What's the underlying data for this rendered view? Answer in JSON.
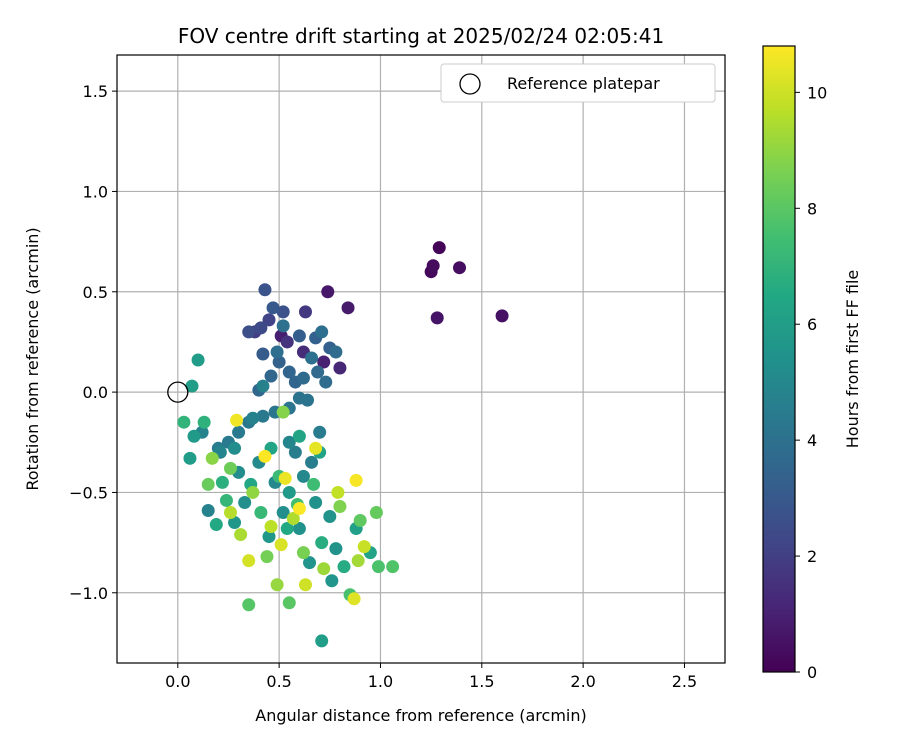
{
  "chart_data": {
    "type": "scatter",
    "title": "FOV centre drift starting at 2025/02/24 02:05:41",
    "xlabel": "Angular distance from reference (arcmin)",
    "ylabel": "Rotation from reference (arcmin)",
    "xlim": [
      -0.3,
      2.7
    ],
    "ylim": [
      -1.35,
      1.68
    ],
    "xticks": [
      0.0,
      0.5,
      1.0,
      1.5,
      2.0,
      2.5
    ],
    "xtick_labels": [
      "0.0",
      "0.5",
      "1.0",
      "1.5",
      "2.0",
      "2.5"
    ],
    "yticks": [
      -1.0,
      -0.5,
      0.0,
      0.5,
      1.0,
      1.5
    ],
    "ytick_labels": [
      "−1.0",
      "−0.5",
      "0.0",
      "0.5",
      "1.0",
      "1.5"
    ],
    "grid": true,
    "legend": {
      "position": "top-right",
      "entries": [
        "Reference platepar"
      ]
    },
    "reference": {
      "x": 0.0,
      "y": 0.0,
      "label": "Reference platepar"
    },
    "colorbar": {
      "label": "Hours from first FF file",
      "min": 0,
      "max": 10.8,
      "ticks": [
        0,
        2,
        4,
        6,
        8,
        10
      ],
      "colormap": "viridis"
    },
    "points": [
      {
        "x": 1.29,
        "y": 0.72,
        "h": 0.1
      },
      {
        "x": 1.25,
        "y": 0.6,
        "h": 0.2
      },
      {
        "x": 1.26,
        "y": 0.63,
        "h": 0.3
      },
      {
        "x": 1.39,
        "y": 0.62,
        "h": 0.4
      },
      {
        "x": 1.6,
        "y": 0.38,
        "h": 0.5
      },
      {
        "x": 1.28,
        "y": 0.37,
        "h": 0.6
      },
      {
        "x": 0.74,
        "y": 0.5,
        "h": 0.7
      },
      {
        "x": 0.84,
        "y": 0.42,
        "h": 0.8
      },
      {
        "x": 0.51,
        "y": 0.28,
        "h": 0.9
      },
      {
        "x": 0.72,
        "y": 0.15,
        "h": 1.0
      },
      {
        "x": 0.8,
        "y": 0.12,
        "h": 1.2
      },
      {
        "x": 0.62,
        "y": 0.2,
        "h": 1.4
      },
      {
        "x": 0.54,
        "y": 0.25,
        "h": 1.6
      },
      {
        "x": 0.63,
        "y": 0.4,
        "h": 1.8
      },
      {
        "x": 0.38,
        "y": 0.3,
        "h": 2.0
      },
      {
        "x": 0.45,
        "y": 0.36,
        "h": 2.2
      },
      {
        "x": 0.41,
        "y": 0.32,
        "h": 2.4
      },
      {
        "x": 0.35,
        "y": 0.3,
        "h": 2.6
      },
      {
        "x": 0.52,
        "y": 0.4,
        "h": 2.7
      },
      {
        "x": 0.43,
        "y": 0.51,
        "h": 2.8
      },
      {
        "x": 0.47,
        "y": 0.42,
        "h": 3.0
      },
      {
        "x": 0.42,
        "y": 0.19,
        "h": 3.1
      },
      {
        "x": 0.6,
        "y": 0.28,
        "h": 3.2
      },
      {
        "x": 0.75,
        "y": 0.22,
        "h": 3.3
      },
      {
        "x": 0.68,
        "y": 0.27,
        "h": 3.3
      },
      {
        "x": 0.5,
        "y": 0.15,
        "h": 3.4
      },
      {
        "x": 0.55,
        "y": 0.1,
        "h": 3.5
      },
      {
        "x": 0.58,
        "y": 0.05,
        "h": 3.5
      },
      {
        "x": 0.46,
        "y": 0.08,
        "h": 3.6
      },
      {
        "x": 0.4,
        "y": 0.01,
        "h": 3.6
      },
      {
        "x": 0.62,
        "y": 0.07,
        "h": 3.7
      },
      {
        "x": 0.69,
        "y": 0.1,
        "h": 3.7
      },
      {
        "x": 0.73,
        "y": 0.05,
        "h": 3.8
      },
      {
        "x": 0.78,
        "y": 0.2,
        "h": 3.8
      },
      {
        "x": 0.71,
        "y": 0.3,
        "h": 3.9
      },
      {
        "x": 0.49,
        "y": 0.2,
        "h": 3.9
      },
      {
        "x": 0.52,
        "y": 0.33,
        "h": 4.0
      },
      {
        "x": 0.66,
        "y": 0.17,
        "h": 4.0
      },
      {
        "x": 0.6,
        "y": -0.03,
        "h": 4.1
      },
      {
        "x": 0.64,
        "y": -0.04,
        "h": 4.1
      },
      {
        "x": 0.55,
        "y": -0.08,
        "h": 4.2
      },
      {
        "x": 0.48,
        "y": -0.1,
        "h": 4.2
      },
      {
        "x": 0.42,
        "y": -0.12,
        "h": 4.3
      },
      {
        "x": 0.35,
        "y": -0.15,
        "h": 4.3
      },
      {
        "x": 0.3,
        "y": -0.2,
        "h": 4.4
      },
      {
        "x": 0.25,
        "y": -0.25,
        "h": 4.4
      },
      {
        "x": 0.2,
        "y": -0.28,
        "h": 4.5
      },
      {
        "x": 0.7,
        "y": -0.2,
        "h": 4.5
      },
      {
        "x": 0.58,
        "y": -0.3,
        "h": 4.6
      },
      {
        "x": 0.66,
        "y": -0.35,
        "h": 4.6
      },
      {
        "x": 0.42,
        "y": 0.03,
        "h": 4.7
      },
      {
        "x": 0.37,
        "y": -0.13,
        "h": 4.7
      },
      {
        "x": 0.12,
        "y": -0.2,
        "h": 4.8
      },
      {
        "x": 0.15,
        "y": -0.59,
        "h": 4.8
      },
      {
        "x": 0.21,
        "y": -0.3,
        "h": 4.9
      },
      {
        "x": 0.55,
        "y": -0.25,
        "h": 4.9
      },
      {
        "x": 0.62,
        "y": -0.42,
        "h": 5.0
      },
      {
        "x": 0.48,
        "y": -0.45,
        "h": 5.0
      },
      {
        "x": 0.4,
        "y": -0.35,
        "h": 5.1
      },
      {
        "x": 0.3,
        "y": -0.4,
        "h": 5.2
      },
      {
        "x": 0.28,
        "y": -0.28,
        "h": 5.2
      },
      {
        "x": 0.33,
        "y": -0.55,
        "h": 5.3
      },
      {
        "x": 0.52,
        "y": -0.6,
        "h": 5.3
      },
      {
        "x": 0.68,
        "y": -0.55,
        "h": 5.4
      },
      {
        "x": 0.6,
        "y": -0.68,
        "h": 5.4
      },
      {
        "x": 0.75,
        "y": -0.62,
        "h": 5.5
      },
      {
        "x": 0.78,
        "y": -0.78,
        "h": 5.5
      },
      {
        "x": 0.65,
        "y": -0.85,
        "h": 5.6
      },
      {
        "x": 0.76,
        "y": -0.94,
        "h": 5.6
      },
      {
        "x": 0.45,
        "y": -0.72,
        "h": 5.7
      },
      {
        "x": 0.28,
        "y": -0.65,
        "h": 5.7
      },
      {
        "x": 0.55,
        "y": -0.5,
        "h": 5.8
      },
      {
        "x": 0.08,
        "y": -0.22,
        "h": 5.8
      },
      {
        "x": 0.06,
        "y": -0.33,
        "h": 5.9
      },
      {
        "x": 0.1,
        "y": 0.16,
        "h": 5.9
      },
      {
        "x": 0.07,
        "y": 0.03,
        "h": 6.0
      },
      {
        "x": 0.71,
        "y": -1.24,
        "h": 6.0
      },
      {
        "x": 0.88,
        "y": -0.68,
        "h": 6.1
      },
      {
        "x": 0.95,
        "y": -0.8,
        "h": 6.2
      },
      {
        "x": 0.7,
        "y": -0.3,
        "h": 6.2
      },
      {
        "x": 0.6,
        "y": -0.22,
        "h": 6.3
      },
      {
        "x": 0.46,
        "y": -0.28,
        "h": 6.3
      },
      {
        "x": 0.36,
        "y": -0.46,
        "h": 6.4
      },
      {
        "x": 0.19,
        "y": -0.66,
        "h": 6.5
      },
      {
        "x": 0.54,
        "y": -0.68,
        "h": 6.5
      },
      {
        "x": 0.82,
        "y": -0.87,
        "h": 6.6
      },
      {
        "x": 0.71,
        "y": -0.75,
        "h": 6.7
      },
      {
        "x": 0.22,
        "y": -0.45,
        "h": 6.8
      },
      {
        "x": 0.13,
        "y": -0.15,
        "h": 6.9
      },
      {
        "x": 0.03,
        "y": -0.15,
        "h": 7.0
      },
      {
        "x": 0.24,
        "y": -0.54,
        "h": 7.1
      },
      {
        "x": 0.41,
        "y": -0.6,
        "h": 7.2
      },
      {
        "x": 0.5,
        "y": -0.42,
        "h": 7.3
      },
      {
        "x": 0.67,
        "y": -0.46,
        "h": 7.4
      },
      {
        "x": 0.59,
        "y": -0.56,
        "h": 7.5
      },
      {
        "x": 0.85,
        "y": -1.01,
        "h": 7.6
      },
      {
        "x": 0.99,
        "y": -0.87,
        "h": 7.7
      },
      {
        "x": 1.06,
        "y": -0.87,
        "h": 7.8
      },
      {
        "x": 0.35,
        "y": -1.06,
        "h": 7.9
      },
      {
        "x": 0.55,
        "y": -1.05,
        "h": 8.0
      },
      {
        "x": 0.9,
        "y": -0.64,
        "h": 8.1
      },
      {
        "x": 0.98,
        "y": -0.6,
        "h": 8.2
      },
      {
        "x": 0.15,
        "y": -0.46,
        "h": 8.3
      },
      {
        "x": 0.26,
        "y": -0.38,
        "h": 8.4
      },
      {
        "x": 0.44,
        "y": -0.82,
        "h": 8.5
      },
      {
        "x": 0.62,
        "y": -0.8,
        "h": 8.6
      },
      {
        "x": 0.8,
        "y": -0.57,
        "h": 8.7
      },
      {
        "x": 0.52,
        "y": -0.1,
        "h": 8.8
      },
      {
        "x": 0.17,
        "y": -0.33,
        "h": 8.9
      },
      {
        "x": 0.37,
        "y": -0.5,
        "h": 9.0
      },
      {
        "x": 0.49,
        "y": -0.96,
        "h": 9.1
      },
      {
        "x": 0.72,
        "y": -0.88,
        "h": 9.2
      },
      {
        "x": 0.89,
        "y": -0.84,
        "h": 9.3
      },
      {
        "x": 0.31,
        "y": -0.71,
        "h": 9.4
      },
      {
        "x": 0.57,
        "y": -0.63,
        "h": 9.5
      },
      {
        "x": 0.26,
        "y": -0.6,
        "h": 9.6
      },
      {
        "x": 0.46,
        "y": -0.67,
        "h": 9.7
      },
      {
        "x": 0.79,
        "y": -0.5,
        "h": 9.8
      },
      {
        "x": 0.92,
        "y": -0.77,
        "h": 9.9
      },
      {
        "x": 0.63,
        "y": -0.96,
        "h": 10.0
      },
      {
        "x": 0.35,
        "y": -0.84,
        "h": 10.1
      },
      {
        "x": 0.51,
        "y": -0.76,
        "h": 10.2
      },
      {
        "x": 0.87,
        "y": -1.03,
        "h": 10.3
      },
      {
        "x": 0.68,
        "y": -0.28,
        "h": 10.4
      },
      {
        "x": 0.53,
        "y": -0.43,
        "h": 10.5
      },
      {
        "x": 0.29,
        "y": -0.14,
        "h": 10.6
      },
      {
        "x": 0.88,
        "y": -0.44,
        "h": 10.7
      },
      {
        "x": 0.6,
        "y": -0.58,
        "h": 10.75
      },
      {
        "x": 0.43,
        "y": -0.32,
        "h": 10.8
      }
    ]
  }
}
